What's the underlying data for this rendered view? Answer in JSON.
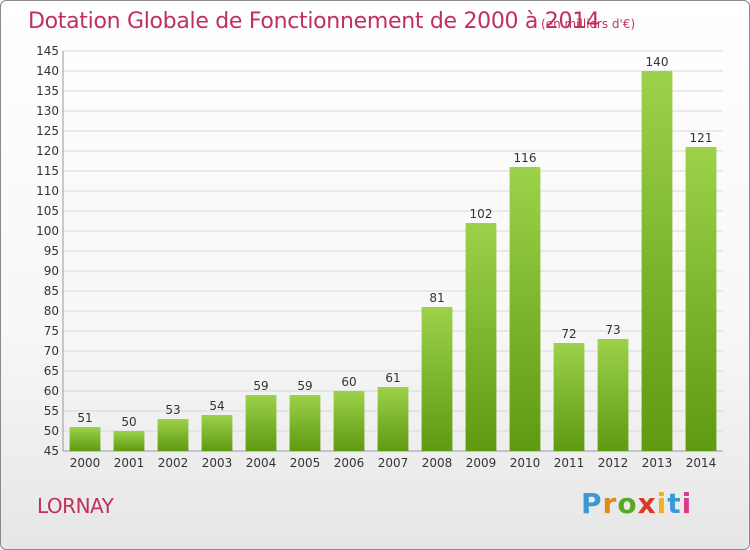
{
  "header": {
    "title": "Dotation Globale de Fonctionnement de 2000 à 2014",
    "subtitle": "(en milliers d'€)"
  },
  "footer": {
    "location": "LORNAY",
    "brand": "Proxiti"
  },
  "colors": {
    "accent": "#c0305a",
    "bar_top": "#9cd24a",
    "bar_bottom": "#5e9a12",
    "grid": "#d8d8d8",
    "axis_text": "#333333"
  },
  "chart_data": {
    "type": "bar",
    "title": "Dotation Globale de Fonctionnement de 2000 à 2014",
    "subtitle": "(en milliers d'€)",
    "xlabel": "",
    "ylabel": "",
    "categories": [
      "2000",
      "2001",
      "2002",
      "2003",
      "2004",
      "2005",
      "2006",
      "2007",
      "2008",
      "2009",
      "2010",
      "2011",
      "2012",
      "2013",
      "2014"
    ],
    "values": [
      51,
      50,
      53,
      54,
      59,
      59,
      60,
      61,
      81,
      102,
      116,
      72,
      73,
      140,
      121
    ],
    "ylim": [
      45,
      145
    ],
    "ytick_step": 5,
    "grid": true,
    "legend": "none"
  }
}
